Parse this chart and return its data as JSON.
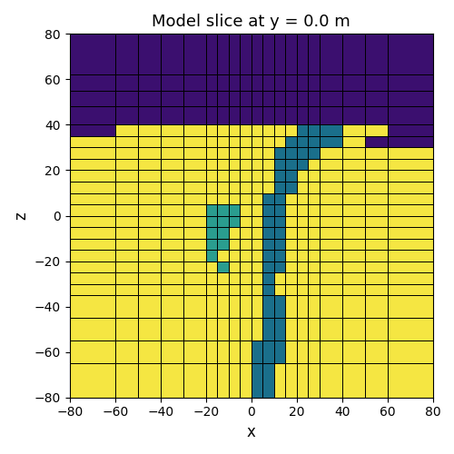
{
  "title": "Model slice at y = 0.0 m",
  "xlabel": "x",
  "ylabel": "z",
  "xlim": [
    -80,
    80
  ],
  "ylim": [
    -80,
    80
  ],
  "colors": {
    "purple": "#3b0f6f",
    "yellow": "#f5e642",
    "teal_dark": "#1a6f8b",
    "teal_light": "#2a9d8f"
  },
  "x_edges": [
    -80,
    -60,
    -50,
    -40,
    -30,
    -20,
    -15,
    -10,
    -5,
    0,
    5,
    10,
    15,
    20,
    25,
    30,
    40,
    50,
    60,
    80
  ],
  "z_edges": [
    -80,
    -65,
    -55,
    -45,
    -35,
    -30,
    -25,
    -20,
    -15,
    -10,
    -5,
    0,
    5,
    10,
    15,
    20,
    25,
    30,
    35,
    40,
    48,
    55,
    62,
    80
  ]
}
